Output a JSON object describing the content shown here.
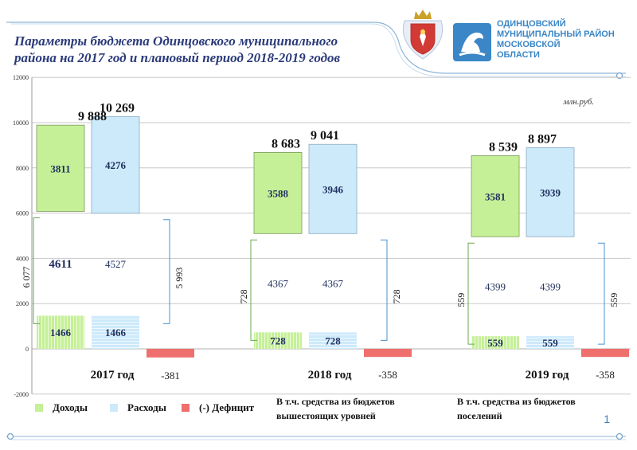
{
  "header": {
    "title_line1": "Параметры бюджета Одинцовского муниципального",
    "title_line2": "района на 2017 год и плановый период 2018-2019 годов",
    "org_lines": [
      "ОДИНЦОВСКИЙ",
      "МУНИЦИПАЛЬНЫЙ РАЙОН",
      "МОСКОВСКОЙ",
      "ОБЛАСТИ"
    ]
  },
  "footer": {
    "page_number": "1"
  },
  "colors": {
    "income": "#c6f098",
    "income_border": "#7a9a5a",
    "expense": "#cdeafb",
    "expense_border": "#8aa8c0",
    "deficit": "#ef6f6f",
    "accent": "#3a86c6",
    "bracket_income": "#6aa84f",
    "bracket_expense": "#4a90d0",
    "text_dark": "#1f2f5f"
  },
  "chart_data": {
    "type": "bar",
    "unit_label": "млн.руб.",
    "ylim": [
      -2000,
      12000
    ],
    "yticks": [
      -2000,
      0,
      2000,
      4000,
      6000,
      8000,
      10000,
      12000
    ],
    "ytick_labels": [
      "-2000",
      "0",
      "2000",
      "4000",
      "6000",
      "8000",
      "10000",
      "12000"
    ],
    "grid": true,
    "legend_position": "bottom",
    "categories": [
      "2017 год",
      "2018 год",
      "2019 год"
    ],
    "series": [
      {
        "name": "Доходы",
        "total": [
          9888,
          8683,
          8539
        ],
        "total_labels": [
          "9 888",
          "8 683",
          "8 539"
        ],
        "upper_segment": [
          3811,
          3588,
          3581
        ],
        "middle_segment": [
          4611,
          4367,
          4399
        ],
        "lower_segment": [
          1466,
          728,
          559
        ]
      },
      {
        "name": "Расходы",
        "total": [
          10269,
          9041,
          8897
        ],
        "total_labels": [
          "10 269",
          "9 041",
          "8 897"
        ],
        "upper_segment": [
          4276,
          3946,
          3939
        ],
        "middle_segment": [
          4527,
          4367,
          4399
        ],
        "lower_segment": [
          1466,
          728,
          559
        ]
      },
      {
        "name": "(-) Дефицит",
        "values": [
          -381,
          -358,
          -358
        ]
      }
    ],
    "brackets": {
      "income": [
        "6 077",
        "728",
        "559"
      ],
      "expense": [
        "5 993",
        "728",
        "559"
      ]
    },
    "legend_notes": [
      "В т.ч. средства из бюджетов вышестоящих уровней",
      "В т.ч. средства из бюджетов поселений"
    ]
  }
}
